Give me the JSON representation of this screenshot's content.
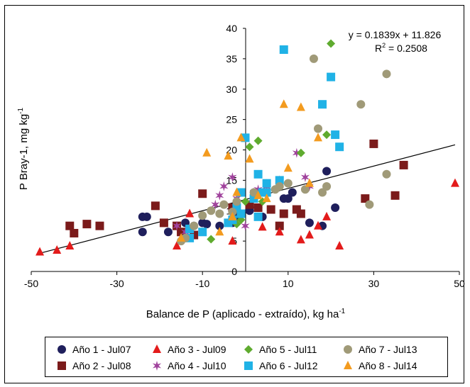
{
  "chart_data": {
    "type": "scatter",
    "title": "",
    "xlabel": "Balance de P (aplicado - extraído), kg ha",
    "xlabel_sup": "-1",
    "ylabel": "P Bray-1, mg kg",
    "ylabel_sup": "-1",
    "xlim": [
      -50,
      50
    ],
    "ylim": [
      0,
      40
    ],
    "x_ticks": [
      -50,
      -30,
      -10,
      10,
      30,
      50
    ],
    "y_ticks": [
      0,
      5,
      10,
      15,
      20,
      25,
      30,
      35,
      40
    ],
    "grid": false,
    "legend_position": "bottom",
    "equation": "y = 0.1839x + 11.826",
    "r2_label": "R",
    "r2_sup": "2",
    "r2_value": " = 0.2508",
    "trendline": {
      "slope": 0.1839,
      "intercept": 11.826,
      "x_range": [
        -48,
        49
      ]
    },
    "series": [
      {
        "name": "Año 1 - Jul07",
        "marker": "circle",
        "color": "#1f1f5c",
        "points": [
          [
            -24,
            9
          ],
          [
            -24,
            6.5
          ],
          [
            -23,
            9
          ],
          [
            -18,
            6.5
          ],
          [
            -14,
            8
          ],
          [
            -12,
            7.5
          ],
          [
            -10,
            8
          ],
          [
            -9,
            7.8
          ],
          [
            -6,
            7.5
          ],
          [
            -3,
            8
          ],
          [
            -2,
            9
          ],
          [
            1,
            10
          ],
          [
            3,
            10.5
          ],
          [
            4,
            9
          ],
          [
            9,
            12
          ],
          [
            10,
            12
          ],
          [
            11,
            13
          ],
          [
            15,
            8
          ],
          [
            18,
            7.5
          ],
          [
            19,
            16.5
          ],
          [
            21,
            10.5
          ]
        ]
      },
      {
        "name": "Año 2 - Jul08",
        "marker": "square",
        "color": "#7b1b1b",
        "points": [
          [
            -41,
            7.5
          ],
          [
            -40,
            6.3
          ],
          [
            -37,
            7.8
          ],
          [
            -34,
            7.5
          ],
          [
            -21,
            10.8
          ],
          [
            -19,
            8
          ],
          [
            -16,
            7.5
          ],
          [
            -15,
            6.5
          ],
          [
            -12,
            6
          ],
          [
            -10,
            12.8
          ],
          [
            -3,
            10.5
          ],
          [
            1,
            11
          ],
          [
            3,
            10.5
          ],
          [
            6,
            10.2
          ],
          [
            8,
            7.5
          ],
          [
            9,
            9.5
          ],
          [
            12,
            10.2
          ],
          [
            13,
            9.5
          ],
          [
            28,
            12
          ],
          [
            30,
            21
          ],
          [
            35,
            12.5
          ],
          [
            37,
            17.5
          ]
        ]
      },
      {
        "name": "Año 3 - Jul09",
        "marker": "triangle",
        "color": "#e31b1b",
        "points": [
          [
            -48,
            3.2
          ],
          [
            -44,
            3.5
          ],
          [
            -41,
            4.2
          ],
          [
            -16,
            4.2
          ],
          [
            -13,
            9.5
          ],
          [
            -3,
            5
          ],
          [
            4,
            7.3
          ],
          [
            8,
            6.5
          ],
          [
            13,
            5.2
          ],
          [
            15,
            6
          ],
          [
            17,
            7.5
          ],
          [
            19,
            9
          ],
          [
            22,
            4.2
          ],
          [
            49,
            14.5
          ]
        ]
      },
      {
        "name": "Año 4 - Jul10",
        "marker": "star",
        "color": "#a0429c",
        "points": [
          [
            -16,
            7.5
          ],
          [
            -14,
            6.5
          ],
          [
            -7,
            11
          ],
          [
            -6,
            12.5
          ],
          [
            -5,
            14
          ],
          [
            -3,
            15.5
          ],
          [
            -2,
            12
          ],
          [
            0,
            7.5
          ],
          [
            2,
            13
          ],
          [
            3,
            13.5
          ],
          [
            5,
            14
          ],
          [
            8,
            15
          ],
          [
            12,
            19.5
          ],
          [
            14,
            15.5
          ],
          [
            15,
            14
          ]
        ]
      },
      {
        "name": "Año 5 - Jul11",
        "marker": "diamond",
        "color": "#5fab2f",
        "points": [
          [
            -8,
            5.3
          ],
          [
            -2,
            7.8
          ],
          [
            -1,
            8.5
          ],
          [
            0,
            11.5
          ],
          [
            1,
            20.5
          ],
          [
            3,
            21.5
          ],
          [
            4,
            11.5
          ],
          [
            5,
            14.5
          ],
          [
            13,
            19.5
          ],
          [
            19,
            22.5
          ],
          [
            20,
            37.5
          ]
        ]
      },
      {
        "name": "Año 6 - Jul12",
        "marker": "square",
        "color": "#20b2e6",
        "points": [
          [
            -13,
            7
          ],
          [
            -13,
            5.5
          ],
          [
            -10,
            6.5
          ],
          [
            -2,
            10.5
          ],
          [
            -1,
            13
          ],
          [
            -1,
            9.5
          ],
          [
            0,
            22
          ],
          [
            2,
            12
          ],
          [
            3,
            16
          ],
          [
            3,
            9
          ],
          [
            4,
            13
          ],
          [
            5,
            13
          ],
          [
            5,
            14.5
          ],
          [
            8,
            15
          ],
          [
            9,
            36.5
          ],
          [
            18,
            27.5
          ],
          [
            20,
            32
          ],
          [
            21,
            22.5
          ],
          [
            22,
            20.5
          ],
          [
            -4,
            8
          ],
          [
            -3,
            8.5
          ]
        ]
      },
      {
        "name": "Año 7 - Jul13",
        "marker": "circle",
        "color": "#a09a78",
        "points": [
          [
            -15,
            5
          ],
          [
            -14,
            5.5
          ],
          [
            -12,
            7.5
          ],
          [
            -10,
            9.2
          ],
          [
            -8,
            10
          ],
          [
            -6,
            9.5
          ],
          [
            -5,
            11
          ],
          [
            -3,
            9.8
          ],
          [
            -2,
            11.5
          ],
          [
            2,
            13
          ],
          [
            7,
            13.5
          ],
          [
            8,
            14
          ],
          [
            10,
            14.5
          ],
          [
            14,
            13.5
          ],
          [
            16,
            35
          ],
          [
            17,
            23.5
          ],
          [
            18,
            13
          ],
          [
            19,
            14
          ],
          [
            27,
            27.5
          ],
          [
            29,
            11
          ],
          [
            33,
            32.5
          ],
          [
            33,
            16
          ]
        ]
      },
      {
        "name": "Año 8 - Jul14",
        "marker": "triangle",
        "color": "#f39b1f",
        "points": [
          [
            -15,
            5.5
          ],
          [
            -9,
            19.5
          ],
          [
            -4,
            19
          ],
          [
            -2,
            13
          ],
          [
            -1,
            22
          ],
          [
            1,
            18.5
          ],
          [
            3,
            12.5
          ],
          [
            5,
            12
          ],
          [
            9,
            27.5
          ],
          [
            10,
            17
          ],
          [
            13,
            27
          ],
          [
            15,
            14.5
          ],
          [
            17,
            22
          ],
          [
            -6,
            6.5
          ],
          [
            -3,
            9
          ]
        ]
      }
    ]
  }
}
